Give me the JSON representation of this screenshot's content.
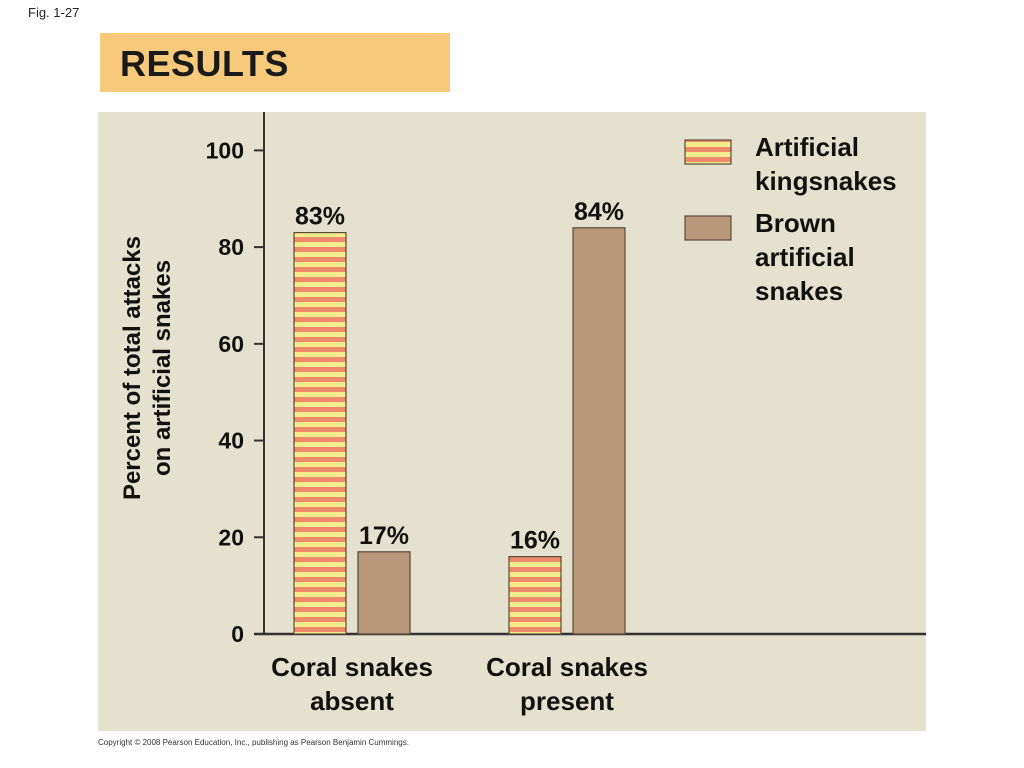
{
  "figure_label": "Fig. 1-27",
  "banner": {
    "title": "RESULTS"
  },
  "copyright": "Copyright © 2008 Pearson Education, Inc., publishing as Pearson Benjamin Cummings.",
  "chart_data": {
    "type": "bar",
    "categories": [
      "Coral snakes absent",
      "Coral snakes present"
    ],
    "category_lines": [
      [
        "Coral snakes",
        "absent"
      ],
      [
        "Coral snakes",
        "present"
      ]
    ],
    "series": [
      {
        "name": "Artificial kingsnakes",
        "legend_lines": [
          "Artificial",
          "kingsnakes"
        ],
        "values": [
          83,
          16
        ],
        "data_labels": [
          "83%",
          "16%"
        ],
        "pattern": "stripes",
        "colors": [
          "#f3ec8c",
          "#ee8a6a"
        ]
      },
      {
        "name": "Brown artificial snakes",
        "legend_lines": [
          "Brown",
          "artificial",
          "snakes"
        ],
        "values": [
          17,
          84
        ],
        "data_labels": [
          "17%",
          "84%"
        ],
        "pattern": "solid",
        "colors": [
          "#b89878"
        ]
      }
    ],
    "ylabel": "Percent of total attacks on artificial snakes",
    "ylabel_lines": [
      "Percent of total attacks",
      "on artificial snakes"
    ],
    "yticks": [
      0,
      20,
      40,
      60,
      80,
      100
    ],
    "ylim": [
      0,
      107
    ],
    "grid": false,
    "legend": "top-right"
  }
}
